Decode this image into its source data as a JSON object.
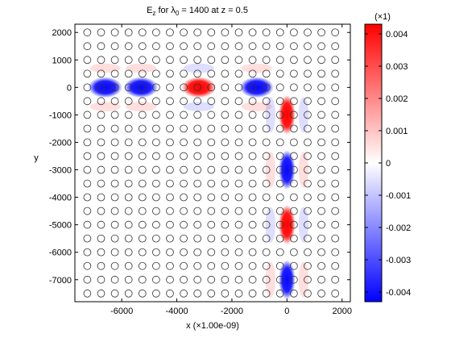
{
  "chart_data": {
    "type": "heatmap",
    "title": {
      "base": "E",
      "sub": "z",
      "mid": " for λ",
      "sub2": "0",
      "tail": " = 1400  at  z = 0.5"
    },
    "xlabel": "x (×1.00e-09)",
    "ylabel": "y",
    "xlim": [
      -7700,
      2300
    ],
    "ylim": [
      -7800,
      2300
    ],
    "x_ticks": [
      -6000,
      -4000,
      -2000,
      0,
      2000
    ],
    "y_ticks": [
      2000,
      1000,
      0,
      -1000,
      -2000,
      -3000,
      -4000,
      -5000,
      -6000,
      -7000
    ],
    "grid": false,
    "colorbar": {
      "multiplier": "(×1)",
      "range": [
        -0.0043,
        0.0043
      ],
      "ticks": [
        {
          "value": 0.004,
          "label": "0.004"
        },
        {
          "value": 0.003,
          "label": "0.003"
        },
        {
          "value": 0.002,
          "label": "0.002"
        },
        {
          "value": 0.001,
          "label": "0.001"
        },
        {
          "value": 0,
          "label": "0"
        },
        {
          "value": -0.001,
          "label": "-0.001"
        },
        {
          "value": -0.002,
          "label": "-0.002"
        },
        {
          "value": -0.003,
          "label": "-0.003"
        },
        {
          "value": -0.004,
          "label": "-0.004"
        }
      ],
      "colors": {
        "negative": "#0000ff",
        "zero": "#ffffff",
        "positive": "#ff0000"
      }
    },
    "lattice": {
      "pitch": 500,
      "x_start": -7250,
      "x_end": 2000,
      "y_start": -7500,
      "y_end": 2000,
      "radius": 130
    },
    "field_lobes": [
      {
        "orientation": "horizontal",
        "cx": -6600,
        "cy": 0,
        "value": -0.0042
      },
      {
        "orientation": "horizontal",
        "cx": -5300,
        "cy": 0,
        "value": -0.0042
      },
      {
        "orientation": "horizontal",
        "cx": -3200,
        "cy": 0,
        "value": 0.0043
      },
      {
        "orientation": "horizontal",
        "cx": -1100,
        "cy": 0,
        "value": -0.0042
      },
      {
        "orientation": "vertical",
        "cx": 0,
        "cy": -1000,
        "value": 0.0043
      },
      {
        "orientation": "vertical",
        "cx": 0,
        "cy": -3000,
        "value": -0.0042
      },
      {
        "orientation": "vertical",
        "cx": 0,
        "cy": -5000,
        "value": 0.0043
      },
      {
        "orientation": "vertical",
        "cx": 0,
        "cy": -7000,
        "value": -0.0042
      }
    ]
  }
}
